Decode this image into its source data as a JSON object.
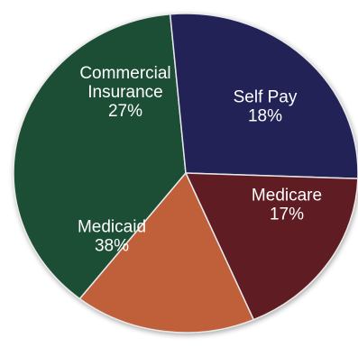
{
  "chart_data": {
    "type": "pie",
    "slices": [
      {
        "key": "medicaid",
        "label_lines": [
          "Medicaid",
          "38%"
        ],
        "value": 38,
        "color": "#1e4d35"
      },
      {
        "key": "commercial",
        "label_lines": [
          "Commercial",
          "Insurance",
          "27%"
        ],
        "value": 27,
        "color": "#232356"
      },
      {
        "key": "self-pay",
        "label_lines": [
          "Self Pay",
          "18%"
        ],
        "value": 18,
        "color": "#5f1a23"
      },
      {
        "key": "medicare",
        "label_lines": [
          "Medicare",
          "17%"
        ],
        "value": 17,
        "color": "#c0603b"
      }
    ]
  }
}
